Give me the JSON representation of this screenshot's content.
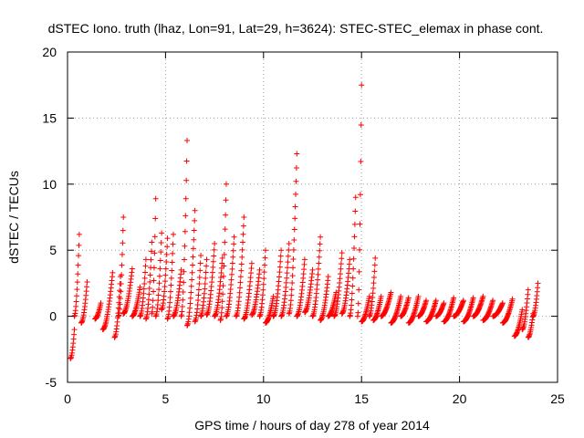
{
  "chart_data": {
    "type": "scatter",
    "title": "dSTEC Iono. truth (lhaz, Lon=91, Lat=29, h=3624): STEC-STEC_elemax in phase cont.",
    "xlabel": "GPS time / hours of day 278 of year 2014",
    "ylabel": "dSTEC  / TECUs",
    "xlim": [
      0,
      25
    ],
    "ylim": [
      -5,
      20
    ],
    "xticks": [
      0,
      5,
      10,
      15,
      20,
      25
    ],
    "xtick_labels": [
      "0",
      "5",
      "10",
      "15",
      "20",
      "25"
    ],
    "yticks": [
      -5,
      0,
      5,
      10,
      15,
      20
    ],
    "ytick_labels": [
      "-5",
      "0",
      "5",
      "10",
      "15",
      "20"
    ],
    "grid": true,
    "marker": "plus",
    "series_color": "#ff0000",
    "arcs": [
      {
        "t0": 0.15,
        "t1": 0.35,
        "v0": -3.2,
        "v1": -1.0
      },
      {
        "t0": 0.35,
        "t1": 0.6,
        "v0": 0.0,
        "v1": 6.2
      },
      {
        "t0": 0.7,
        "t1": 1.0,
        "v0": -0.5,
        "v1": 2.6
      },
      {
        "t0": 1.4,
        "t1": 1.7,
        "v0": -0.2,
        "v1": 1.0
      },
      {
        "t0": 1.8,
        "t1": 2.3,
        "v0": -1.0,
        "v1": 3.3
      },
      {
        "t0": 2.4,
        "t1": 2.7,
        "v0": -1.6,
        "v1": 3.0
      },
      {
        "t0": 2.6,
        "t1": 2.85,
        "v0": 0.0,
        "v1": 7.5
      },
      {
        "t0": 2.85,
        "t1": 3.3,
        "v0": 0.2,
        "v1": 3.6
      },
      {
        "t0": 3.3,
        "t1": 3.7,
        "v0": 0.0,
        "v1": 2.2
      },
      {
        "t0": 3.7,
        "t1": 4.0,
        "v0": 0.0,
        "v1": 4.3
      },
      {
        "t0": 4.0,
        "t1": 4.3,
        "v0": -0.2,
        "v1": 5.6
      },
      {
        "t0": 4.3,
        "t1": 4.5,
        "v0": 0.2,
        "v1": 8.9
      },
      {
        "t0": 4.5,
        "t1": 4.8,
        "v0": 0.0,
        "v1": 6.3
      },
      {
        "t0": 4.8,
        "t1": 5.1,
        "v0": 0.5,
        "v1": 5.9
      },
      {
        "t0": 5.1,
        "t1": 5.4,
        "v0": -0.2,
        "v1": 6.2
      },
      {
        "t0": 5.4,
        "t1": 5.8,
        "v0": 0.0,
        "v1": 3.5
      },
      {
        "t0": 5.8,
        "t1": 6.1,
        "v0": 0.0,
        "v1": 13.3
      },
      {
        "t0": 6.1,
        "t1": 6.5,
        "v0": -0.7,
        "v1": 8.0
      },
      {
        "t0": 6.5,
        "t1": 6.8,
        "v0": -0.4,
        "v1": 4.6
      },
      {
        "t0": 6.8,
        "t1": 7.1,
        "v0": 0.0,
        "v1": 4.3
      },
      {
        "t0": 7.1,
        "t1": 7.5,
        "v0": 0.1,
        "v1": 5.5
      },
      {
        "t0": 7.5,
        "t1": 7.9,
        "v0": 0.0,
        "v1": 4.4
      },
      {
        "t0": 7.8,
        "t1": 8.1,
        "v0": -0.3,
        "v1": 10.0
      },
      {
        "t0": 8.1,
        "t1": 8.5,
        "v0": 0.0,
        "v1": 6.0
      },
      {
        "t0": 8.6,
        "t1": 9.0,
        "v0": 0.0,
        "v1": 7.5
      },
      {
        "t0": 9.0,
        "t1": 9.4,
        "v0": -0.2,
        "v1": 4.0
      },
      {
        "t0": 9.4,
        "t1": 9.8,
        "v0": 0.1,
        "v1": 3.5
      },
      {
        "t0": 9.8,
        "t1": 10.1,
        "v0": 0.0,
        "v1": 5.0
      },
      {
        "t0": 10.1,
        "t1": 10.5,
        "v0": -0.5,
        "v1": 1.5
      },
      {
        "t0": 10.5,
        "t1": 10.9,
        "v0": 0.0,
        "v1": 5.0
      },
      {
        "t0": 10.9,
        "t1": 11.3,
        "v0": 0.0,
        "v1": 5.5
      },
      {
        "t0": 11.3,
        "t1": 11.7,
        "v0": 0.2,
        "v1": 12.3
      },
      {
        "t0": 11.7,
        "t1": 12.1,
        "v0": 0.0,
        "v1": 4.3
      },
      {
        "t0": 12.1,
        "t1": 12.5,
        "v0": 0.3,
        "v1": 3.5
      },
      {
        "t0": 12.5,
        "t1": 12.9,
        "v0": 0.0,
        "v1": 6.0
      },
      {
        "t0": 12.9,
        "t1": 13.3,
        "v0": -0.3,
        "v1": 3.0
      },
      {
        "t0": 13.3,
        "t1": 13.7,
        "v0": 0.0,
        "v1": 1.8
      },
      {
        "t0": 13.6,
        "t1": 14.0,
        "v0": 0.0,
        "v1": 4.8
      },
      {
        "t0": 14.0,
        "t1": 14.4,
        "v0": 0.2,
        "v1": 4.3
      },
      {
        "t0": 14.4,
        "t1": 14.7,
        "v0": 0.0,
        "v1": 9.0
      },
      {
        "t0": 14.8,
        "t1": 15.0,
        "v0": 0.0,
        "v1": 17.5
      },
      {
        "t0": 15.0,
        "t1": 15.4,
        "v0": -0.4,
        "v1": 1.5
      },
      {
        "t0": 15.4,
        "t1": 15.7,
        "v0": 0.0,
        "v1": 4.4
      },
      {
        "t0": 15.6,
        "t1": 16.0,
        "v0": -0.3,
        "v1": 1.5
      },
      {
        "t0": 16.0,
        "t1": 16.5,
        "v0": 0.0,
        "v1": 1.8
      },
      {
        "t0": 16.5,
        "t1": 17.0,
        "v0": -0.5,
        "v1": 1.5
      },
      {
        "t0": 17.0,
        "t1": 17.4,
        "v0": 0.0,
        "v1": 1.4
      },
      {
        "t0": 17.4,
        "t1": 17.9,
        "v0": -0.5,
        "v1": 1.5
      },
      {
        "t0": 17.9,
        "t1": 18.3,
        "v0": 0.0,
        "v1": 1.2
      },
      {
        "t0": 18.3,
        "t1": 18.8,
        "v0": -0.4,
        "v1": 1.2
      },
      {
        "t0": 18.8,
        "t1": 19.2,
        "v0": 0.0,
        "v1": 1.0
      },
      {
        "t0": 19.2,
        "t1": 19.7,
        "v0": -0.4,
        "v1": 1.4
      },
      {
        "t0": 19.7,
        "t1": 20.2,
        "v0": 0.0,
        "v1": 1.2
      },
      {
        "t0": 20.2,
        "t1": 20.7,
        "v0": -0.4,
        "v1": 1.4
      },
      {
        "t0": 20.7,
        "t1": 21.2,
        "v0": 0.0,
        "v1": 1.5
      },
      {
        "t0": 21.2,
        "t1": 21.7,
        "v0": -0.3,
        "v1": 1.2
      },
      {
        "t0": 21.7,
        "t1": 22.2,
        "v0": 0.0,
        "v1": 1.0
      },
      {
        "t0": 22.2,
        "t1": 22.7,
        "v0": -0.5,
        "v1": 1.3
      },
      {
        "t0": 22.8,
        "t1": 23.2,
        "v0": -1.5,
        "v1": 0.5
      },
      {
        "t0": 23.2,
        "t1": 23.5,
        "v0": -1.0,
        "v1": 2.0
      },
      {
        "t0": 23.5,
        "t1": 23.75,
        "v0": -1.6,
        "v1": 0.2
      },
      {
        "t0": 23.75,
        "t1": 24.0,
        "v0": 0.0,
        "v1": 2.5
      }
    ]
  }
}
